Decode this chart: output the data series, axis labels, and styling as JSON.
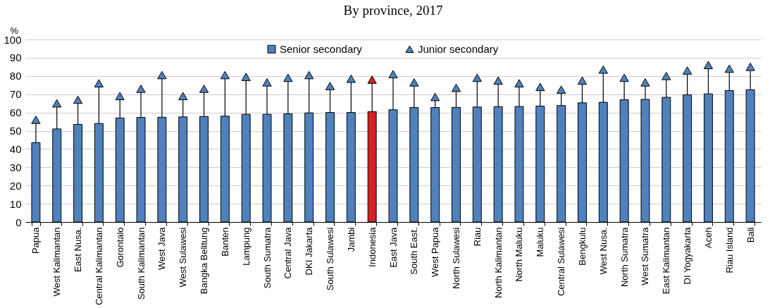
{
  "chart_data": {
    "type": "bar",
    "title": "By province, 2017",
    "ylabel": "%",
    "categories": [
      "Papua",
      "West Kalimantan",
      "East Nusa.",
      "Central Kalimantan",
      "Gorontalo",
      "South Kalimantan",
      "West Java",
      "West Sulawesi",
      "Bangka Belitung",
      "Banten",
      "Lampung",
      "South Sumatra",
      "Central Java",
      "DKI Jakarta",
      "South Sulawesi",
      "Jambi",
      "Indonesia",
      "East Java",
      "South East.",
      "West Papua",
      "North Sulawesi",
      "Riau",
      "North Kalimantan",
      "North Maluku",
      "Maluku",
      "Central Sulawesi",
      "Bengkulu",
      "West Nusa.",
      "North Sumatra",
      "West Sumatra",
      "East Kalimantan",
      "DI Yogyakarta",
      "Aceh",
      "Riau Island",
      "Bali"
    ],
    "series": [
      {
        "name": "Senior secondary",
        "type": "bar",
        "color": "#4f81bd",
        "colors": [
          "#4f81bd",
          "#4f81bd",
          "#4f81bd",
          "#4f81bd",
          "#4f81bd",
          "#4f81bd",
          "#4f81bd",
          "#4f81bd",
          "#4f81bd",
          "#4f81bd",
          "#4f81bd",
          "#4f81bd",
          "#4f81bd",
          "#4f81bd",
          "#4f81bd",
          "#4f81bd",
          "#d62027",
          "#4f81bd",
          "#4f81bd",
          "#4f81bd",
          "#4f81bd",
          "#4f81bd",
          "#4f81bd",
          "#4f81bd",
          "#4f81bd",
          "#4f81bd",
          "#4f81bd",
          "#4f81bd",
          "#4f81bd",
          "#4f81bd",
          "#4f81bd",
          "#4f81bd",
          "#4f81bd",
          "#4f81bd",
          "#4f81bd"
        ],
        "values": [
          43.5,
          51,
          53.5,
          54,
          57,
          57.3,
          57.4,
          57.6,
          57.8,
          58,
          59,
          59,
          59.3,
          59.8,
          60,
          60,
          60.5,
          61.5,
          62.7,
          62.7,
          62.8,
          63,
          63.2,
          63.3,
          63.5,
          63.8,
          65.3,
          65.6,
          67,
          67.2,
          68.3,
          69.7,
          70.2,
          72,
          72.5
        ]
      },
      {
        "name": "Junior secondary",
        "type": "scatter",
        "marker": "triangle",
        "color": "#4f81bd",
        "colors": [
          "#4f81bd",
          "#4f81bd",
          "#4f81bd",
          "#4f81bd",
          "#4f81bd",
          "#4f81bd",
          "#4f81bd",
          "#4f81bd",
          "#4f81bd",
          "#4f81bd",
          "#4f81bd",
          "#4f81bd",
          "#4f81bd",
          "#4f81bd",
          "#4f81bd",
          "#4f81bd",
          "#d62027",
          "#4f81bd",
          "#4f81bd",
          "#4f81bd",
          "#4f81bd",
          "#4f81bd",
          "#4f81bd",
          "#4f81bd",
          "#4f81bd",
          "#4f81bd",
          "#4f81bd",
          "#4f81bd",
          "#4f81bd",
          "#4f81bd",
          "#4f81bd",
          "#4f81bd",
          "#4f81bd",
          "#4f81bd",
          "#4f81bd"
        ],
        "values": [
          56,
          65,
          67,
          76,
          69,
          73,
          80.5,
          69,
          73,
          80.5,
          79.5,
          76.5,
          79,
          80.5,
          74.5,
          78.5,
          78,
          81,
          76.5,
          68.5,
          73.5,
          79,
          77.5,
          76,
          74,
          72.5,
          77.5,
          83.5,
          79,
          76.5,
          80,
          83,
          86,
          84,
          85
        ],
        "errors": [
          [
            43.5,
            56
          ],
          [
            51,
            65
          ],
          [
            53.5,
            67
          ],
          [
            54,
            76
          ],
          [
            57,
            69
          ],
          [
            57.3,
            73
          ],
          [
            57.4,
            80.5
          ],
          [
            57.6,
            69
          ],
          [
            57.8,
            73
          ],
          [
            58,
            80.5
          ],
          [
            59,
            79.5
          ],
          [
            59,
            76.5
          ],
          [
            59.3,
            79
          ],
          [
            59.8,
            80.5
          ],
          [
            60,
            74.5
          ],
          [
            60,
            78.5
          ],
          [
            60.5,
            78
          ],
          [
            61.5,
            81
          ],
          [
            62.7,
            76.5
          ],
          [
            62.7,
            68.5
          ],
          [
            62.8,
            73.5
          ],
          [
            63,
            79
          ],
          [
            63.2,
            77.5
          ],
          [
            63.3,
            76
          ],
          [
            63.5,
            74
          ],
          [
            63.8,
            72.5
          ],
          [
            65.3,
            77.5
          ],
          [
            65.6,
            83.5
          ],
          [
            67,
            79
          ],
          [
            67.2,
            76.5
          ],
          [
            68.3,
            80
          ],
          [
            69.7,
            83
          ],
          [
            70.2,
            86
          ],
          [
            72,
            84
          ],
          [
            72.5,
            85
          ]
        ]
      }
    ],
    "ylim": [
      0,
      100
    ],
    "yticks": [
      0,
      10,
      20,
      30,
      40,
      50,
      60,
      70,
      80,
      90,
      100
    ],
    "grid": "y",
    "legend": "top"
  }
}
